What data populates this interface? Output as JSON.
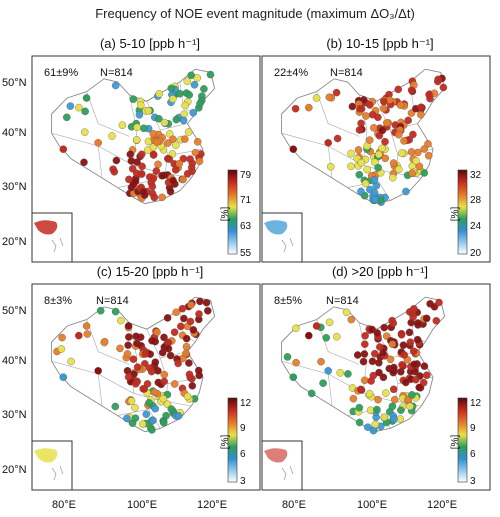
{
  "figure": {
    "title": "Frequency of NOE event magnitude (maximum ΔO₃/Δt)",
    "lat_ticks": [
      "50°N",
      "40°N",
      "30°N",
      "20°N"
    ],
    "lon_ticks": [
      "80°E",
      "100°E",
      "120°E"
    ]
  },
  "chart_data": [
    {
      "type": "scatter",
      "panel": "(a)",
      "title": "(a) 5-10 [ppb h⁻¹]",
      "stat_mean": "61±9%",
      "stat_n": "N=814",
      "colorbar": {
        "ticks": [
          "79",
          "71",
          "63",
          "55"
        ],
        "unit": "[%]",
        "range": [
          55,
          79
        ]
      },
      "x_axis": {
        "label": "",
        "ticks": []
      },
      "y_axis": {
        "label": "",
        "ticks": [
          "50°N",
          "40°N",
          "30°N",
          "20°N"
        ]
      },
      "dominant_color": "red (south, inland); blue/green (north)"
    },
    {
      "type": "scatter",
      "panel": "(b)",
      "title": "(b) 10-15 [ppb h⁻¹]",
      "stat_mean": "22±4%",
      "stat_n": "N=814",
      "colorbar": {
        "ticks": [
          "32",
          "28",
          "24",
          "20"
        ],
        "unit": "[%]",
        "range": [
          20,
          32
        ]
      },
      "x_axis": {
        "label": "",
        "ticks": []
      },
      "y_axis": {
        "label": "",
        "ticks": []
      },
      "dominant_color": "red/orange (north and east); blue (south)"
    },
    {
      "type": "scatter",
      "panel": "(c)",
      "title": "(c) 15-20 [ppb h⁻¹]",
      "stat_mean": "8±3%",
      "stat_n": "N=814",
      "colorbar": {
        "ticks": [
          "12",
          "9",
          "6",
          "3"
        ],
        "unit": "[%]",
        "range": [
          3,
          12
        ]
      },
      "x_axis": {
        "label": "",
        "ticks": [
          "80°E",
          "100°E",
          "120°E"
        ]
      },
      "y_axis": {
        "label": "",
        "ticks": [
          "50°N",
          "40°N",
          "30°N",
          "20°N"
        ]
      },
      "dominant_color": "red (north, east); blue (south)"
    },
    {
      "type": "scatter",
      "panel": "(d)",
      "title": "(d) >20 [ppb h⁻¹]",
      "stat_mean": "8±5%",
      "stat_n": "N=814",
      "colorbar": {
        "ticks": [
          "12",
          "9",
          "6",
          "3"
        ],
        "unit": "[%]",
        "range": [
          3,
          12
        ]
      },
      "x_axis": {
        "label": "",
        "ticks": [
          "80°E",
          "100°E",
          "120°E"
        ]
      },
      "y_axis": {
        "label": "",
        "ticks": []
      },
      "dominant_color": "red (north, east); blue (south)"
    }
  ],
  "colors": {
    "low": "#3b9bd6",
    "mid_low": "#2ca05a",
    "mid": "#e8e04a",
    "mid_high": "#e87c2a",
    "high": "#b01a1a"
  }
}
